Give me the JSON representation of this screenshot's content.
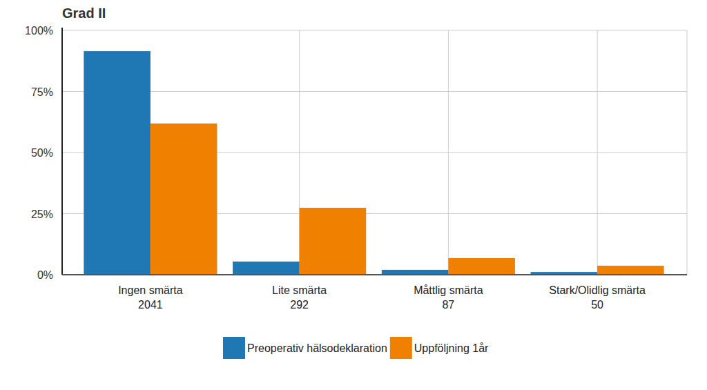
{
  "chart_data": {
    "type": "bar",
    "title": "Grad II",
    "categories": [
      "Ingen smärta",
      "Lite smärta",
      "Måttlig smärta",
      "Stark/Olidlig smärta"
    ],
    "counts": [
      2041,
      292,
      87,
      50
    ],
    "series": [
      {
        "name": "Preoperativ hälsodeklaration",
        "color": "#1f77b4",
        "values": [
          91.5,
          5.4,
          2.0,
          1.1
        ]
      },
      {
        "name": "Uppföljning 1år",
        "color": "#f08000",
        "values": [
          61.9,
          27.4,
          6.8,
          3.7
        ]
      }
    ],
    "ylim": [
      0,
      100
    ],
    "yticks": [
      {
        "value": 0,
        "label": "0%"
      },
      {
        "value": 25,
        "label": "25%"
      },
      {
        "value": 50,
        "label": "50%"
      },
      {
        "value": 75,
        "label": "75%"
      },
      {
        "value": 100,
        "label": "100%"
      }
    ],
    "grid": true,
    "legend": "bottom"
  }
}
